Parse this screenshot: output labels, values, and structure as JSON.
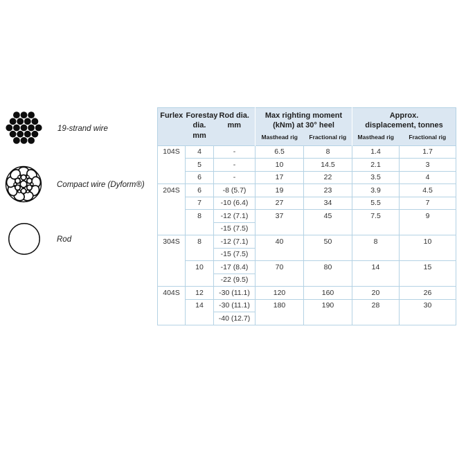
{
  "colors": {
    "table_header_bg": "#dbe7f2",
    "table_border": "#b4d2e4",
    "text": "#303030"
  },
  "legend": {
    "items": [
      {
        "icon": "19-strand-wire-icon",
        "label": "19-strand wire"
      },
      {
        "icon": "compact-wire-icon",
        "label": "Compact wire (Dyform®)"
      },
      {
        "icon": "rod-icon",
        "label": "Rod"
      }
    ]
  },
  "table": {
    "header": {
      "furlex": "Furlex",
      "forestay_dia": "Forestay\ndia. mm",
      "rod_dia": "Rod dia.\nmm",
      "max_righting_moment": "Max righting moment\n(kNm) at 30° heel",
      "approx_displacement": "Approx.\ndisplacement, tonnes",
      "sub_headers": [
        "Masthead rig",
        "Fractional rig",
        "Masthead rig",
        "Fractional rig"
      ]
    },
    "rows": [
      {
        "cells": [
          [
            "104S",
            3
          ],
          [
            "4",
            1
          ],
          [
            "-",
            1
          ],
          [
            "6.5",
            1
          ],
          [
            "8",
            1
          ],
          [
            "1.4",
            1
          ],
          [
            "1.7",
            1
          ]
        ]
      },
      {
        "cells": [
          [
            "5",
            1
          ],
          [
            "-",
            1
          ],
          [
            "10",
            1
          ],
          [
            "14.5",
            1
          ],
          [
            "2.1",
            1
          ],
          [
            "3",
            1
          ]
        ]
      },
      {
        "cells": [
          [
            "6",
            1
          ],
          [
            "-",
            1
          ],
          [
            "17",
            1
          ],
          [
            "22",
            1
          ],
          [
            "3.5",
            1
          ],
          [
            "4",
            1
          ]
        ]
      },
      {
        "cells": [
          [
            "204S",
            4
          ],
          [
            "6",
            1
          ],
          [
            "-8 (5.7)",
            1
          ],
          [
            "19",
            1
          ],
          [
            "23",
            1
          ],
          [
            "3.9",
            1
          ],
          [
            "4.5",
            1
          ]
        ]
      },
      {
        "cells": [
          [
            "7",
            1
          ],
          [
            "-10 (6.4)",
            1
          ],
          [
            "27",
            1
          ],
          [
            "34",
            1
          ],
          [
            "5.5",
            1
          ],
          [
            "7",
            1
          ]
        ]
      },
      {
        "cells": [
          [
            "8",
            2
          ],
          [
            "-12 (7.1)",
            1
          ],
          [
            "37",
            2
          ],
          [
            "45",
            2
          ],
          [
            "7.5",
            2
          ],
          [
            "9",
            2
          ]
        ]
      },
      {
        "cells": [
          [
            "-15 (7.5)",
            1
          ]
        ]
      },
      {
        "cells": [
          [
            "304S",
            4
          ],
          [
            "8",
            2
          ],
          [
            "-12 (7.1)",
            1
          ],
          [
            "40",
            2
          ],
          [
            "50",
            2
          ],
          [
            "8",
            2
          ],
          [
            "10",
            2
          ]
        ]
      },
      {
        "cells": [
          [
            "-15 (7.5)",
            1
          ]
        ]
      },
      {
        "cells": [
          [
            "10",
            2
          ],
          [
            "-17 (8.4)",
            1
          ],
          [
            "70",
            2
          ],
          [
            "80",
            2
          ],
          [
            "14",
            2
          ],
          [
            "15",
            2
          ]
        ]
      },
      {
        "cells": [
          [
            "-22 (9.5)",
            1
          ]
        ]
      },
      {
        "cells": [
          [
            "404S",
            3
          ],
          [
            "12",
            1
          ],
          [
            "-30 (11.1)",
            1
          ],
          [
            "120",
            1
          ],
          [
            "160",
            1
          ],
          [
            "20",
            1
          ],
          [
            "26",
            1
          ]
        ]
      },
      {
        "cells": [
          [
            "14",
            2
          ],
          [
            "-30 (11.1)",
            1
          ],
          [
            "180",
            2
          ],
          [
            "190",
            2
          ],
          [
            "28",
            2
          ],
          [
            "30",
            2
          ]
        ]
      },
      {
        "cells": [
          [
            "-40 (12.7)",
            1
          ]
        ]
      }
    ]
  }
}
